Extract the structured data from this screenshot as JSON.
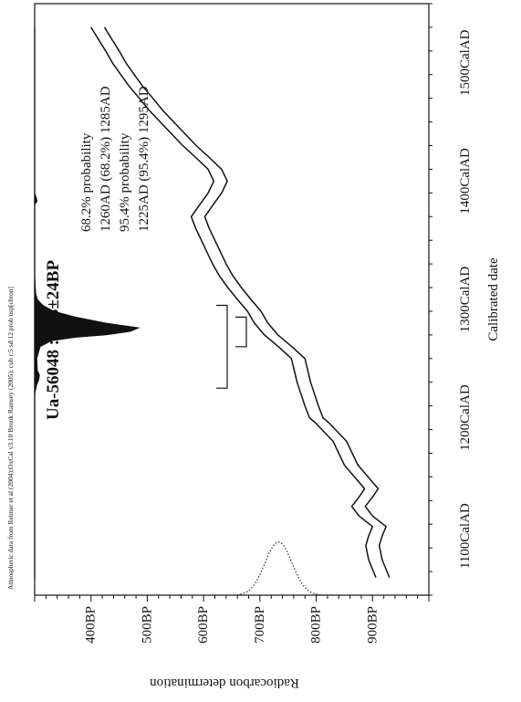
{
  "chart_data": {
    "type": "line",
    "header_note": "Atmospheric data from Reimer et al (2004);OxCal v3.10 Bronk Ramsey (2005); cub r:5 sd:12 prob usp[chron]",
    "sample_label": "Ua-56048 : 733±24BP",
    "probability_lines": [
      "68.2% probability",
      "1260AD (68.2%) 1285AD",
      "95.4% probability",
      "1225AD (95.4%) 1295AD"
    ],
    "xlabel": "Calibrated date",
    "ylabel": "Radiocarbon determination",
    "x_unit": "CalAD",
    "y_unit": "BP",
    "xlim": [
      1050,
      1550
    ],
    "ylim": [
      300,
      1000
    ],
    "x_ticks": [
      1100,
      1200,
      1300,
      1400,
      1500
    ],
    "x_tick_labels": [
      "1100CalAD",
      "1200CalAD",
      "1300CalAD",
      "1400CalAD",
      "1500CalAD"
    ],
    "x_minor_step": 20,
    "y_ticks": [
      400,
      500,
      600,
      700,
      800,
      900
    ],
    "y_tick_labels": [
      "400BP",
      "500BP",
      "600BP",
      "700BP",
      "800BP",
      "900BP"
    ],
    "y_minor_step": 20,
    "calibration_curve": {
      "x": [
        1065,
        1080,
        1092,
        1100,
        1108,
        1117,
        1125,
        1133,
        1140,
        1150,
        1160,
        1180,
        1195,
        1200,
        1210,
        1220,
        1230,
        1240,
        1250,
        1260,
        1270,
        1280,
        1290,
        1300,
        1310,
        1320,
        1330,
        1340,
        1350,
        1360,
        1370,
        1380,
        1390,
        1400,
        1410,
        1420,
        1430,
        1440,
        1450,
        1460,
        1470,
        1480,
        1490,
        1500,
        1510,
        1520,
        1530
      ],
      "y": [
        918,
        905,
        900,
        905,
        912,
        888,
        875,
        888,
        898,
        880,
        862,
        842,
        812,
        800,
        792,
        785,
        778,
        773,
        768,
        745,
        720,
        702,
        690,
        672,
        655,
        640,
        628,
        618,
        608,
        598,
        590,
        605,
        620,
        630,
        620,
        598,
        575,
        555,
        535,
        515,
        498,
        480,
        465,
        450,
        438,
        425,
        412
      ],
      "band_half_width_bp": 12
    },
    "radiocarbon_distribution": {
      "mean_bp": 733,
      "sd_bp": 24,
      "height_years": 45,
      "baseline_x": 1050
    },
    "calibrated_distribution": {
      "x": [
        1220,
        1228,
        1232,
        1236,
        1240,
        1250,
        1260,
        1265,
        1268,
        1270,
        1273,
        1276,
        1280,
        1285,
        1290,
        1295,
        1300,
        1305,
        1320,
        1380,
        1383,
        1386,
        1390
      ],
      "density": [
        0,
        1.5,
        3,
        3.5,
        2,
        1.5,
        4,
        12,
        30,
        52,
        70,
        76,
        52,
        30,
        14,
        6,
        2,
        0.8,
        0,
        0,
        1.8,
        1.2,
        0
      ],
      "peak_height_bp": 185,
      "baseline_y": 300
    },
    "range_bars": [
      {
        "label": "68.2%",
        "start": 1260,
        "end": 1285
      },
      {
        "label": "95.4%",
        "start": 1225,
        "end": 1295
      }
    ]
  }
}
